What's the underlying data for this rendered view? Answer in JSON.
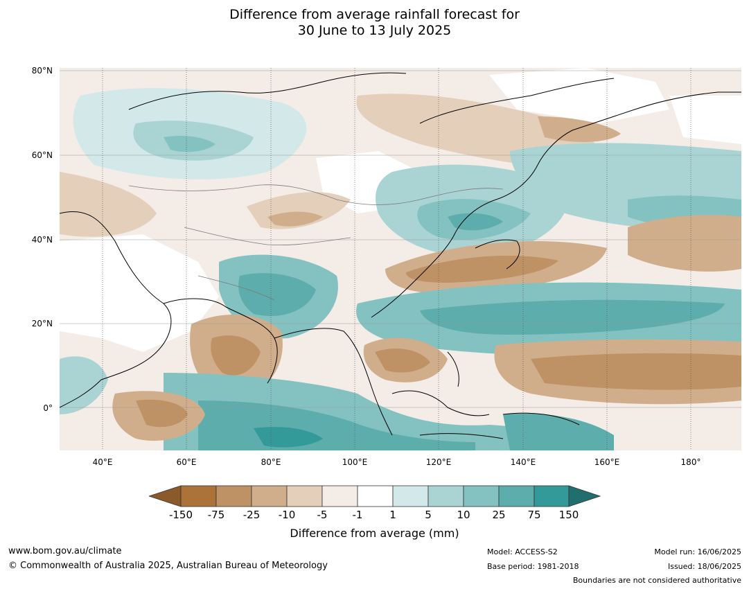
{
  "title_line1": "Difference from average rainfall forecast for",
  "title_line2": "30 June to 13 July 2025",
  "lat_labels": [
    "80°N",
    "60°N",
    "40°N",
    "20°N",
    "0°"
  ],
  "lon_labels": [
    "40°E",
    "60°E",
    "80°E",
    "100°E",
    "120°E",
    "140°E",
    "160°E",
    "180°"
  ],
  "colorbar": {
    "labels": [
      "-150",
      "-75",
      "-25",
      "-10",
      "-5",
      "-1",
      "1",
      "5",
      "10",
      "25",
      "75",
      "150"
    ],
    "colors": [
      "#8b5a2b",
      "#ab7339",
      "#bf9265",
      "#d1ae8b",
      "#e4cfbb",
      "#f4ece6",
      "#ffffff",
      "#d3e8e8",
      "#aad4d4",
      "#84c1c1",
      "#5dadad",
      "#339999",
      "#216e6e"
    ],
    "title": "Difference from average (mm)"
  },
  "footer": {
    "url": "www.bom.gov.au/climate",
    "copyright": "© Commonwealth of Australia 2025, Australian Bureau of Meteorology",
    "model": "Model: ACCESS-S2",
    "base_period": "Base period: 1981-2018",
    "model_run": "Model run: 16/06/2025",
    "issued": "Issued: 18/06/2025",
    "disclaimer": "Boundaries are not considered authoritative"
  }
}
